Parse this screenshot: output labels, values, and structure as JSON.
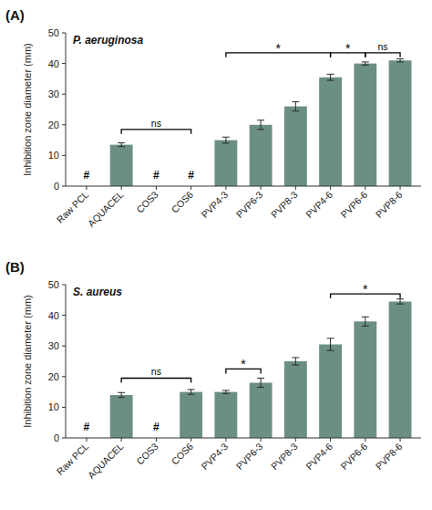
{
  "chart_data": [
    {
      "type": "bar",
      "title": "P. aeruginosa",
      "panel_label": "(A)",
      "categories": [
        "Raw PCL",
        "AQUACEL",
        "COS3",
        "COS6",
        "PVP4-3",
        "PVP6-3",
        "PVP8-3",
        "PVP4-6",
        "PVP6-6",
        "PVP8-6"
      ],
      "values": [
        0,
        13.5,
        0,
        0,
        15.0,
        20.0,
        26.0,
        35.5,
        40.0,
        41.0
      ],
      "errors": [
        0,
        0.6,
        0,
        0,
        1.0,
        1.5,
        1.5,
        1.0,
        0.5,
        0.5
      ],
      "color": "#6b8f83",
      "ylabel": "Inhibition zone diameter (mm)",
      "ylim": [
        0,
        50
      ],
      "yticks": [
        0,
        10,
        20,
        30,
        40,
        50
      ],
      "grid": false,
      "annotations": [
        {
          "text": "#",
          "at": "Raw PCL",
          "y": 3.5
        },
        {
          "text": "#",
          "at": "COS3",
          "y": 3.5
        },
        {
          "text": "#",
          "at": "COS6",
          "y": 3.5
        },
        {
          "text": "ns",
          "from": "AQUACEL",
          "to": "COS6",
          "y": 18.5
        },
        {
          "text": "*",
          "from": "PVP4-3",
          "to": "PVP4-6",
          "y": 43.5
        },
        {
          "text": "*",
          "from": "PVP4-6",
          "to": "PVP6-6",
          "y": 43.5
        },
        {
          "text": "ns",
          "from": "PVP6-6",
          "to": "PVP8-6",
          "y": 43.5
        }
      ]
    },
    {
      "type": "bar",
      "title": "S. aureus",
      "panel_label": "(B)",
      "categories": [
        "Raw PCL",
        "AQUACEL",
        "COS3",
        "COS6",
        "PVP4-3",
        "PVP6-3",
        "PVP8-3",
        "PVP4-6",
        "PVP6-6",
        "PVP8-6"
      ],
      "values": [
        0,
        14.0,
        0,
        15.0,
        15.0,
        18.0,
        25.0,
        30.5,
        38.0,
        44.5
      ],
      "errors": [
        0,
        0.8,
        0,
        0.8,
        0.5,
        1.5,
        1.2,
        2.0,
        1.5,
        0.8
      ],
      "color": "#6b8f83",
      "ylabel": "Inhibition zone diameter (mm)",
      "ylim": [
        0,
        50
      ],
      "yticks": [
        0,
        10,
        20,
        30,
        40,
        50
      ],
      "grid": false,
      "annotations": [
        {
          "text": "#",
          "at": "Raw PCL",
          "y": 3.5
        },
        {
          "text": "#",
          "at": "COS3",
          "y": 3.5
        },
        {
          "text": "ns",
          "from": "AQUACEL",
          "to": "COS6",
          "y": 19.5
        },
        {
          "text": "*",
          "from": "PVP4-3",
          "to": "PVP6-3",
          "y": 22.5
        },
        {
          "text": "*",
          "from": "PVP4-6",
          "to": "PVP8-6",
          "y": 47.0
        }
      ]
    }
  ]
}
